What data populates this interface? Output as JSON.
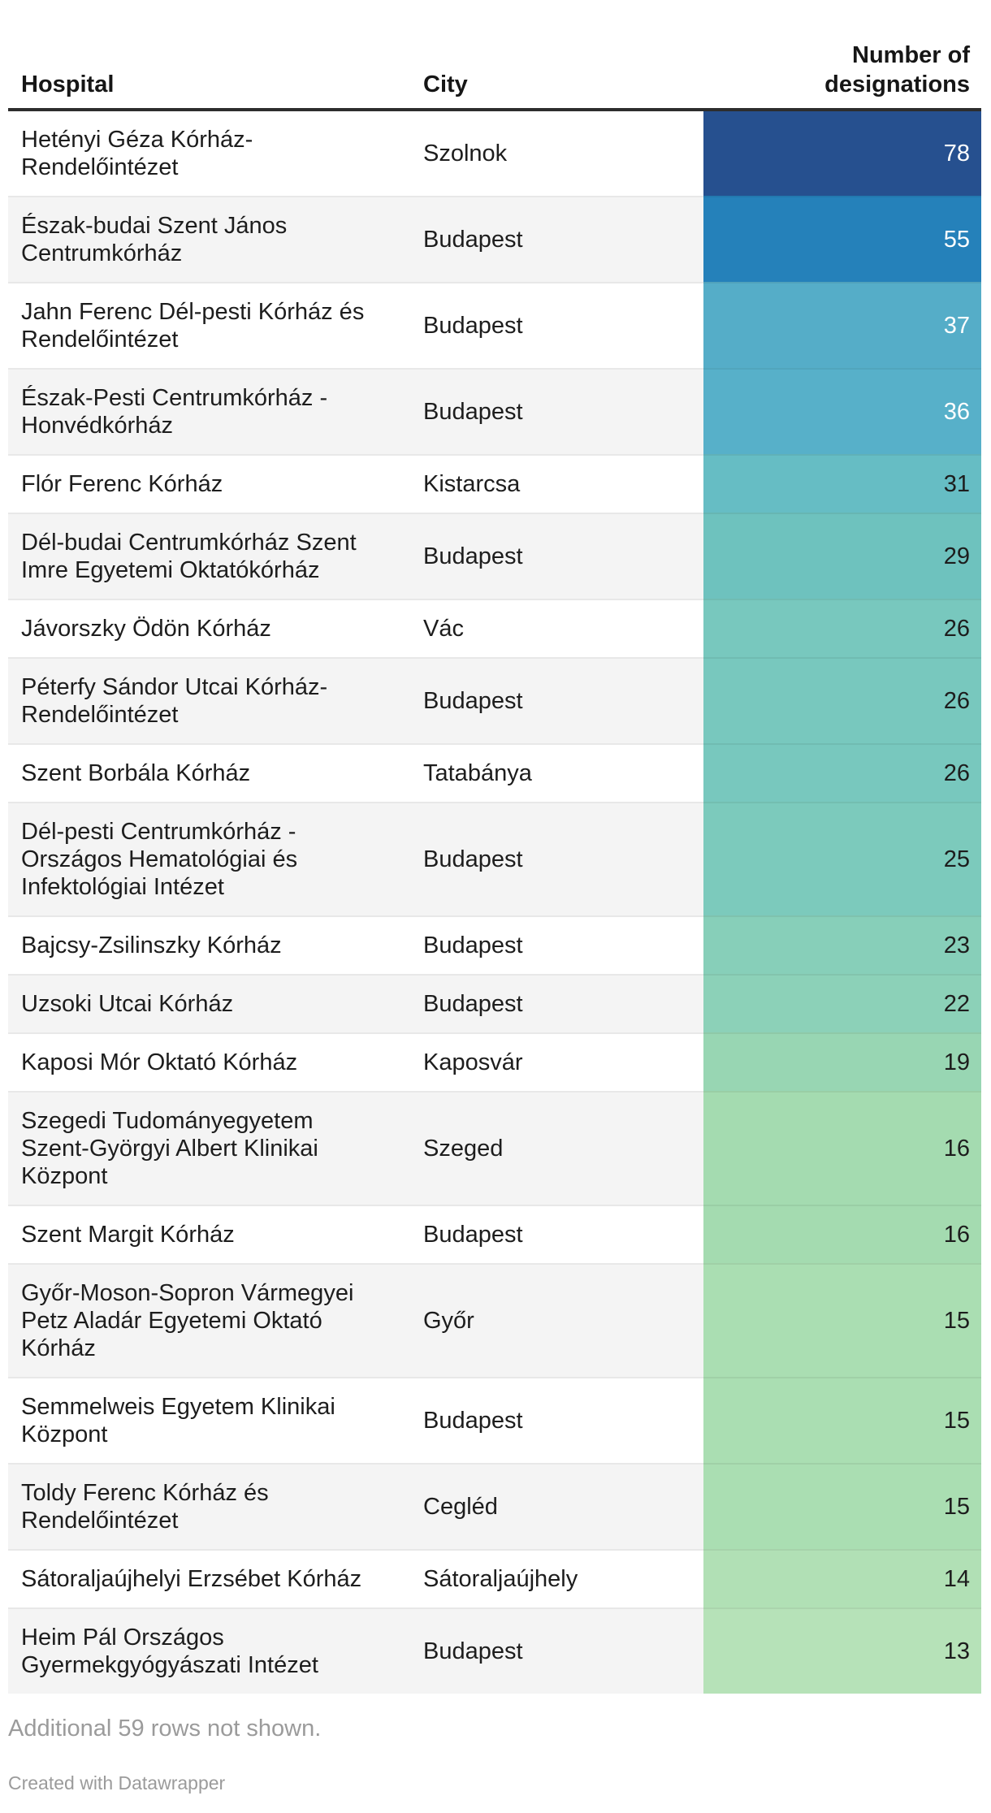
{
  "table": {
    "columns": {
      "hospital": "Hospital",
      "city": "City",
      "designations": "Number of designations"
    },
    "rows": [
      {
        "hospital": "Hetényi Géza Kórház-Rendelőintézet",
        "city": "Szolnok",
        "value": "78",
        "bg": "#26508f",
        "text": "light"
      },
      {
        "hospital": "Észak-budai Szent János Centrumkórház",
        "city": "Budapest",
        "value": "55",
        "bg": "#2581ba",
        "text": "light"
      },
      {
        "hospital": "Jahn Ferenc Dél-pesti Kórház és Rendelőintézet",
        "city": "Budapest",
        "value": "37",
        "bg": "#55adc8",
        "text": "light"
      },
      {
        "hospital": "Észak-Pesti Centrumkórház - Honvédkórház",
        "city": "Budapest",
        "value": "36",
        "bg": "#57b0c9",
        "text": "light"
      },
      {
        "hospital": "Flór Ferenc Kórház",
        "city": "Kistarcsa",
        "value": "31",
        "bg": "#66bdc4",
        "text": "dark"
      },
      {
        "hospital": "Dél-budai Centrumkórház Szent Imre Egyetemi Oktatókórház",
        "city": "Budapest",
        "value": "29",
        "bg": "#6ec2be",
        "text": "dark"
      },
      {
        "hospital": "Jávorszky Ödön Kórház",
        "city": "Vác",
        "value": "26",
        "bg": "#78c8be",
        "text": "dark"
      },
      {
        "hospital": "Péterfy Sándor Utcai Kórház-Rendelőintézet",
        "city": "Budapest",
        "value": "26",
        "bg": "#78c8be",
        "text": "dark"
      },
      {
        "hospital": "Szent Borbála Kórház",
        "city": "Tatabánya",
        "value": "26",
        "bg": "#78c8be",
        "text": "dark"
      },
      {
        "hospital": "Dél-pesti Centrumkórház - Országos Hematológiai és Infektológiai Intézet",
        "city": "Budapest",
        "value": "25",
        "bg": "#7ccabc",
        "text": "dark"
      },
      {
        "hospital": "Bajcsy-Zsilinszky Kórház",
        "city": "Budapest",
        "value": "23",
        "bg": "#87cfb9",
        "text": "dark"
      },
      {
        "hospital": "Uzsoki Utcai Kórház",
        "city": "Budapest",
        "value": "22",
        "bg": "#8cd1b8",
        "text": "dark"
      },
      {
        "hospital": "Kaposi Mór Oktató Kórház",
        "city": "Kaposvár",
        "value": "19",
        "bg": "#98d6b3",
        "text": "dark"
      },
      {
        "hospital": "Szegedi Tudományegyetem Szent-Györgyi Albert Klinikai Központ",
        "city": "Szeged",
        "value": "16",
        "bg": "#a4dbb0",
        "text": "dark"
      },
      {
        "hospital": "Szent Margit Kórház",
        "city": "Budapest",
        "value": "16",
        "bg": "#a4dbb0",
        "text": "dark"
      },
      {
        "hospital": "Győr-Moson-Sopron Vármegyei Petz Aladár Egyetemi Oktató Kórház",
        "city": "Győr",
        "value": "15",
        "bg": "#aadeb2",
        "text": "dark"
      },
      {
        "hospital": "Semmelweis Egyetem Klinikai Központ",
        "city": "Budapest",
        "value": "15",
        "bg": "#aadeb2",
        "text": "dark"
      },
      {
        "hospital": "Toldy Ferenc Kórház és Rendelőintézet",
        "city": "Cegléd",
        "value": "15",
        "bg": "#aadeb2",
        "text": "dark"
      },
      {
        "hospital": "Sátoraljaújhelyi Erzsébet Kórház",
        "city": "Sátoraljaújhely",
        "value": "14",
        "bg": "#b1e0b5",
        "text": "dark"
      },
      {
        "hospital": "Heim Pál Országos Gyermekgyógyászati Intézet",
        "city": "Budapest",
        "value": "13",
        "bg": "#b6e2b8",
        "text": "dark"
      }
    ],
    "footer_note": "Additional 59 rows not shown.",
    "credit": "Created with Datawrapper"
  },
  "chart_data": {
    "type": "table",
    "title": "",
    "columns": [
      "Hospital",
      "City",
      "Number of designations"
    ],
    "rows": [
      [
        "Hetényi Géza Kórház-Rendelőintézet",
        "Szolnok",
        78
      ],
      [
        "Észak-budai Szent János Centrumkórház",
        "Budapest",
        55
      ],
      [
        "Jahn Ferenc Dél-pesti Kórház és Rendelőintézet",
        "Budapest",
        37
      ],
      [
        "Észak-Pesti Centrumkórház - Honvédkórház",
        "Budapest",
        36
      ],
      [
        "Flór Ferenc Kórház",
        "Kistarcsa",
        31
      ],
      [
        "Dél-budai Centrumkórház Szent Imre Egyetemi Oktatókórház",
        "Budapest",
        29
      ],
      [
        "Jávorszky Ödön Kórház",
        "Vác",
        26
      ],
      [
        "Péterfy Sándor Utcai Kórház-Rendelőintézet",
        "Budapest",
        26
      ],
      [
        "Szent Borbála Kórház",
        "Tatabánya",
        26
      ],
      [
        "Dél-pesti Centrumkórház - Országos Hematológiai és Infektológiai Intézet",
        "Budapest",
        25
      ],
      [
        "Bajcsy-Zsilinszky Kórház",
        "Budapest",
        23
      ],
      [
        "Uzsoki Utcai Kórház",
        "Budapest",
        22
      ],
      [
        "Kaposi Mór Oktató Kórház",
        "Kaposvár",
        19
      ],
      [
        "Szegedi Tudományegyetem Szent-Györgyi Albert Klinikai Központ",
        "Szeged",
        16
      ],
      [
        "Szent Margit Kórház",
        "Budapest",
        16
      ],
      [
        "Győr-Moson-Sopron Vármegyei Petz Aladár Egyetemi Oktató Kórház",
        "Győr",
        15
      ],
      [
        "Semmelweis Egyetem Klinikai Központ",
        "Budapest",
        15
      ],
      [
        "Toldy Ferenc Kórház és Rendelőintézet",
        "Cegléd",
        15
      ],
      [
        "Sátoraljaújhelyi Erzsébet Kórház",
        "Sátoraljaújhely",
        14
      ],
      [
        "Heim Pál Országos Gyermekgyógyászati Intézet",
        "Budapest",
        13
      ]
    ],
    "value_color_scale": {
      "78": "#26508f",
      "55": "#2581ba",
      "37": "#55adc8",
      "36": "#57b0c9",
      "31": "#66bdc4",
      "29": "#6ec2be",
      "26": "#78c8be",
      "25": "#7ccabc",
      "23": "#87cfb9",
      "22": "#8cd1b8",
      "19": "#98d6b3",
      "16": "#a4dbb0",
      "15": "#aadeb2",
      "14": "#b1e0b5",
      "13": "#b6e2b8"
    },
    "notes": "Additional 59 rows not shown."
  }
}
